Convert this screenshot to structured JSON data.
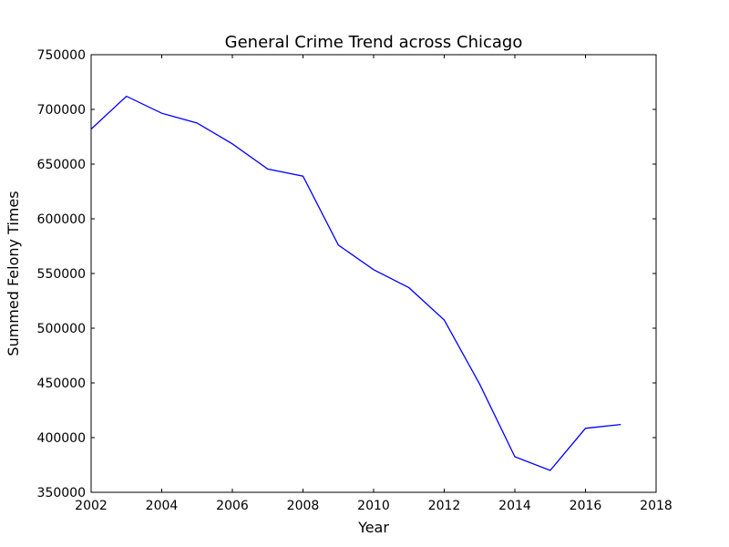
{
  "chart_data": {
    "type": "line",
    "title": "General Crime Trend across Chicago",
    "xlabel": "Year",
    "ylabel": "Summed Felony Times",
    "xlim": [
      2002,
      2018
    ],
    "ylim": [
      350000,
      750000
    ],
    "xticks": [
      2002,
      2004,
      2006,
      2008,
      2010,
      2012,
      2014,
      2016,
      2018
    ],
    "yticks": [
      350000,
      400000,
      450000,
      500000,
      550000,
      600000,
      650000,
      700000,
      750000
    ],
    "grid": false,
    "line_color": "#0000ff",
    "x": [
      2002,
      2003,
      2004,
      2005,
      2006,
      2007,
      2008,
      2009,
      2010,
      2011,
      2012,
      2013,
      2014,
      2015,
      2016,
      2017
    ],
    "y": [
      682000,
      712000,
      696500,
      687500,
      668500,
      645500,
      639000,
      576000,
      553500,
      537000,
      507500,
      449000,
      382500,
      370000,
      408500,
      412000
    ]
  }
}
